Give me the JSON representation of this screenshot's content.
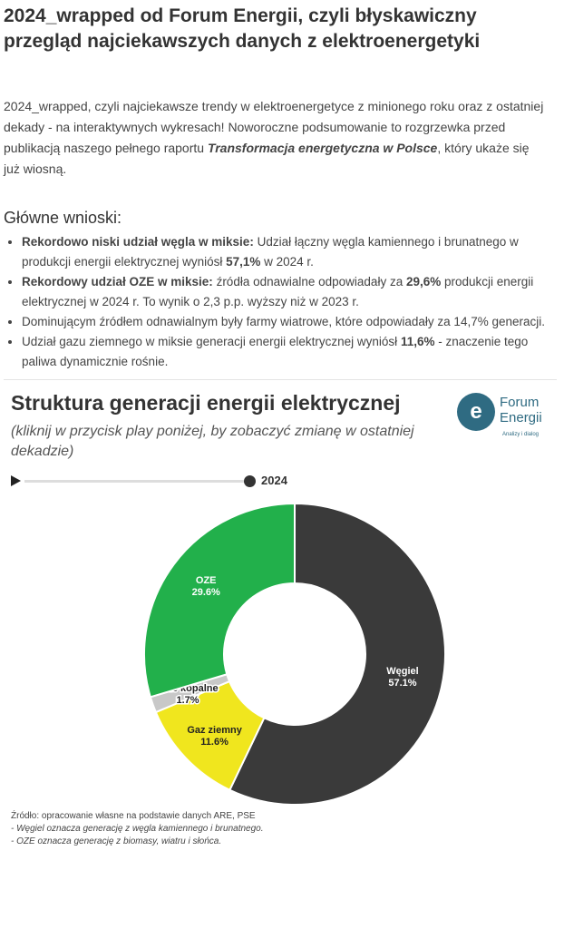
{
  "title": "2024_wrapped od Forum Energii, czyli błyskawiczny przegląd najciekawszych danych z elektroenergetyki",
  "intro": {
    "text": "2024_wrapped, czyli najciekawsze trendy w elektroenergetyce z minionego roku oraz z ostatniej dekady - na interaktywnych wykresach! Noworoczne podsumowanie to rozgrzewka przed publikacją naszego pełnego raportu ",
    "report": "Transformacja energetyczna w Polsce",
    "tail": ", który ukaże się już wiosną."
  },
  "conclusions": {
    "heading": "Główne wnioski:",
    "items": [
      {
        "bold": "Rekordowo niski udział węgla w miksie:",
        "text": " Udział łączny węgla kamiennego i brunatnego w produkcji energii elektrycznej wyniósł ",
        "value": "57,1%",
        "tail": " w 2024 r."
      },
      {
        "bold": "Rekordowy udział OZE w miksie:",
        "text": " źródła odnawialne odpowiadały za ",
        "value": "29,6%",
        "tail": " produkcji energii elektrycznej w 2024 r. To wynik o 2,3 p.p. wyższy niż w 2023 r."
      },
      {
        "bold": "",
        "text": "Dominującym źródłem odnawialnym były farmy wiatrowe, które odpowiadały za 14,7% generacji.",
        "value": "",
        "tail": ""
      },
      {
        "bold": "",
        "text": "Udział gazu ziemnego w miksie generacji energii elektrycznej wyniósł ",
        "value": "11,6%",
        "tail": " - znaczenie tego paliwa dynamicznie rośnie."
      }
    ]
  },
  "chart": {
    "title": "Struktura generacji energii elektrycznej",
    "subtitle": "(kliknij w przycisk play poniżej, by zobaczyć zmianę w ostatniej dekadzie)",
    "year": "2024",
    "timeline_progress": 1.0
  },
  "logo": {
    "name": "Forum Energii",
    "tagline": "Analizy i dialog"
  },
  "chart_data": {
    "type": "pie",
    "donut": true,
    "year": "2024",
    "slices": [
      {
        "name": "Węgiel",
        "value": 57.1,
        "label": "57.1%",
        "color": "#3a3a3a"
      },
      {
        "name": "Gaz ziemny",
        "value": 11.6,
        "label": "11.6%",
        "color": "#f0e61e"
      },
      {
        "name": "Inne kopalne",
        "value": 1.7,
        "label": "1.7%",
        "color": "#c8c8c8"
      },
      {
        "name": "OZE",
        "value": 29.6,
        "label": "29.6%",
        "color": "#22b04b"
      }
    ]
  },
  "source": {
    "line1": "Źródło: opracowanie własne na podstawie danych ARE, PSE",
    "line2": "- Węgiel oznacza generację z węgla kamiennego i brunatnego.",
    "line3": "- OZE oznacza generację z biomasy, wiatru i słońca."
  }
}
